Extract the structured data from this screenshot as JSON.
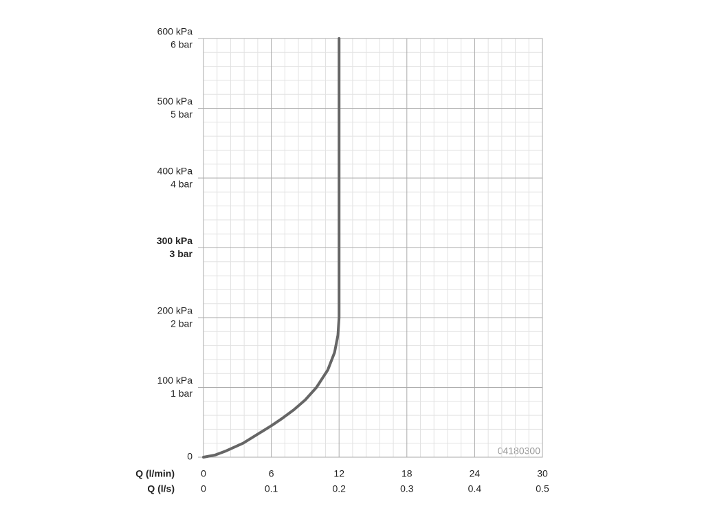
{
  "chart_data": {
    "type": "line",
    "xlabel": "Q (l/min)",
    "x2label": "Q (l/s)",
    "xlim": [
      0,
      30
    ],
    "xticks": [
      0,
      6,
      12,
      18,
      24,
      30
    ],
    "x2lim": [
      0,
      0.5
    ],
    "x2ticks": [
      0,
      0.1,
      0.2,
      0.3,
      0.4,
      0.5
    ],
    "ylim": [
      0,
      600
    ],
    "yticks": [
      0,
      {
        "value": 100,
        "label": "100 kPa"
      },
      {
        "value": 200,
        "label": "200 kPa"
      },
      {
        "value": 300,
        "label": "300 kPa"
      },
      {
        "value": 400,
        "label": "400 kPa"
      },
      {
        "value": 500,
        "label": "500 kPa"
      },
      {
        "value": 600,
        "label": "600 kPa"
      }
    ],
    "y2lim": [
      0,
      6
    ],
    "y2ticks": [
      {
        "value": 1,
        "label": "1 bar"
      },
      {
        "value": 2,
        "label": "2 bar"
      },
      {
        "value": 3,
        "label": "3 bar"
      },
      {
        "value": 4,
        "label": "4 bar"
      },
      {
        "value": 5,
        "label": "5 bar"
      },
      {
        "value": 6,
        "label": "6 bar"
      }
    ],
    "bold_ytick": 300,
    "grid": true,
    "annotation": "04180300",
    "series": [
      {
        "color": "#666666",
        "x": [
          0,
          1,
          2,
          3.5,
          5,
          6,
          7,
          8,
          9,
          10,
          11,
          11.6,
          11.9,
          12,
          12,
          12
        ],
        "values": [
          0,
          3,
          9,
          20,
          35,
          45,
          56,
          68,
          82,
          100,
          125,
          150,
          175,
          200,
          400,
          600
        ]
      }
    ]
  }
}
